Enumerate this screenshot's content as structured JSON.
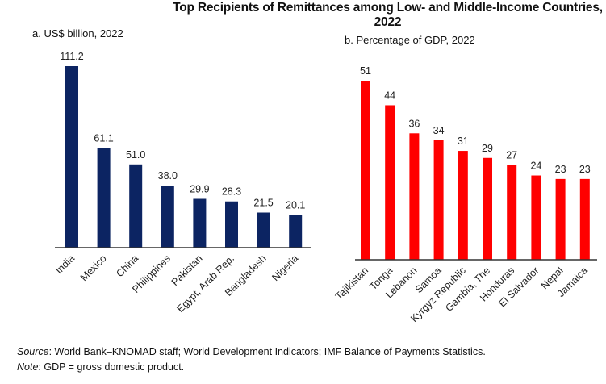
{
  "title": "Top Recipients of Remittances among Low- and Middle-Income Countries, 2022",
  "chart_data": [
    {
      "type": "bar",
      "title": "a. US$ billion, 2022",
      "categories": [
        "India",
        "Mexico",
        "China",
        "Philippines",
        "Pakistan",
        "Egypt, Arab Rep.",
        "Bangladesh",
        "Nigeria"
      ],
      "values": [
        111.2,
        61.1,
        51.0,
        38.0,
        29.9,
        28.3,
        21.5,
        20.1
      ],
      "labels": [
        "111.2",
        "61.1",
        "51.0",
        "38.0",
        "29.9",
        "28.3",
        "21.5",
        "20.1"
      ],
      "color": "#0c2462",
      "grid": false,
      "ylim": [
        0,
        111.2
      ]
    },
    {
      "type": "bar",
      "title": "b. Percentage of GDP, 2022",
      "categories": [
        "Tajikistan",
        "Tonga",
        "Lebanon",
        "Samoa",
        "Kyrgyz Republic",
        "Gambia, The",
        "Honduras",
        "El Salvador",
        "Nepal",
        "Jamaica"
      ],
      "values": [
        51,
        44,
        36,
        34,
        31,
        29,
        27,
        24,
        23,
        23
      ],
      "labels": [
        "51",
        "44",
        "36",
        "34",
        "31",
        "29",
        "27",
        "24",
        "23",
        "23"
      ],
      "color": "#ff0000",
      "grid": false,
      "ylim": [
        0,
        51
      ]
    }
  ],
  "footer": {
    "source_label": "Source",
    "source_text": ": World Bank–KNOMAD staff; World Development Indicators; IMF Balance of Payments Statistics.",
    "note_label": "Note",
    "note_text": ": GDP = gross domestic product."
  }
}
